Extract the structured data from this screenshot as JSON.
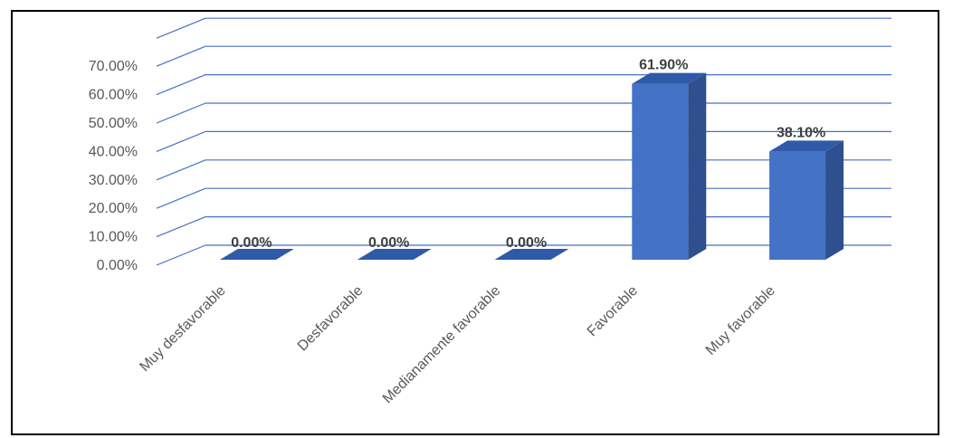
{
  "chart_data": {
    "type": "bar",
    "title": "",
    "xlabel": "",
    "ylabel": "",
    "ylim": [
      0,
      70
    ],
    "y_ticks": [
      "0.00%",
      "10.00%",
      "20.00%",
      "30.00%",
      "40.00%",
      "50.00%",
      "60.00%",
      "70.00%"
    ],
    "categories": [
      "Muy desfavorable",
      "Desfavorable",
      "Medianamente favorable",
      "Favorable",
      "Muy favorable"
    ],
    "values": [
      0,
      0,
      0,
      61.9,
      38.1
    ],
    "data_labels": [
      "0.00%",
      "0.00%",
      "0.00%",
      "61.90%",
      "38.10%"
    ],
    "grid": true,
    "style": "3d-column",
    "colors": {
      "bar_front": "#4472c4",
      "bar_side": "#2f4f8f",
      "bar_top": "#2e5aa8",
      "grid": "#4472c4"
    }
  }
}
